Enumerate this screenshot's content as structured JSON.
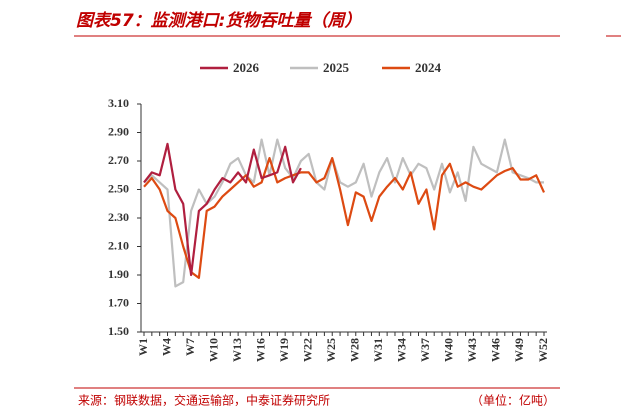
{
  "chart_data": {
    "type": "line",
    "title": "图表57：监测港口:货物吞吐量（周）",
    "source": "来源：钢联数据，交通运输部，中泰证券研究所",
    "unit": "（单位：亿吨）",
    "categories": [
      "W1",
      null,
      null,
      "W4",
      null,
      null,
      "W7",
      null,
      null,
      "W10",
      null,
      null,
      "W13",
      null,
      null,
      "W16",
      null,
      null,
      "W19",
      null,
      null,
      "W22",
      null,
      null,
      "W25",
      null,
      null,
      "W28",
      null,
      null,
      "W31",
      null,
      null,
      "W34",
      null,
      null,
      "W37",
      null,
      null,
      "W40",
      null,
      null,
      "W43",
      null,
      null,
      "W46",
      null,
      null,
      "W49",
      null,
      null,
      "W52"
    ],
    "series": [
      {
        "name": "2026",
        "color": "#b01f3f",
        "values": [
          2.55,
          2.62,
          2.6,
          2.82,
          2.5,
          2.4,
          1.9,
          2.35,
          2.4,
          2.5,
          2.58,
          2.55,
          2.62,
          2.55,
          2.78,
          2.58,
          2.6,
          2.62,
          2.8,
          2.55,
          2.65,
          null,
          null,
          null,
          null,
          null,
          null,
          null,
          null,
          null,
          null,
          null,
          null,
          null,
          null,
          null,
          null,
          null,
          null,
          null,
          null,
          null,
          null,
          null,
          null,
          null,
          null,
          null,
          null,
          null,
          null,
          null
        ]
      },
      {
        "name": "2025",
        "color": "#bfbfbf",
        "values": [
          2.55,
          2.6,
          2.55,
          2.5,
          1.82,
          1.85,
          2.35,
          2.5,
          2.4,
          2.45,
          2.55,
          2.68,
          2.72,
          2.6,
          2.55,
          2.85,
          2.6,
          2.85,
          2.65,
          2.58,
          2.7,
          2.75,
          2.55,
          2.5,
          2.72,
          2.55,
          2.52,
          2.55,
          2.68,
          2.45,
          2.62,
          2.72,
          2.55,
          2.72,
          2.6,
          2.68,
          2.65,
          2.5,
          2.68,
          2.48,
          2.62,
          2.42,
          2.8,
          2.68,
          2.65,
          2.62,
          2.85,
          2.62,
          2.6,
          2.58,
          2.55,
          2.55
        ]
      },
      {
        "name": "2024",
        "color": "#dd4a12",
        "values": [
          2.52,
          2.58,
          2.5,
          2.35,
          2.3,
          2.1,
          1.92,
          1.88,
          2.35,
          2.38,
          2.45,
          2.5,
          2.55,
          2.6,
          2.52,
          2.55,
          2.72,
          2.55,
          2.58,
          2.6,
          2.62,
          2.62,
          2.55,
          2.58,
          2.72,
          2.5,
          2.25,
          2.48,
          2.45,
          2.28,
          2.45,
          2.52,
          2.58,
          2.5,
          2.62,
          2.4,
          2.5,
          2.22,
          2.6,
          2.68,
          2.52,
          2.55,
          2.52,
          2.5,
          2.55,
          2.6,
          2.63,
          2.65,
          2.57,
          2.57,
          2.6,
          2.48
        ]
      }
    ],
    "ylim": [
      1.5,
      3.1
    ],
    "yticks": [
      {
        "value": 1.5,
        "label": "1.50"
      },
      {
        "value": 1.7,
        "label": "1.70"
      },
      {
        "value": 1.9,
        "label": "1.90"
      },
      {
        "value": 2.1,
        "label": "2.10"
      },
      {
        "value": 2.3,
        "label": "2.30"
      },
      {
        "value": 2.5,
        "label": "2.50"
      },
      {
        "value": 2.7,
        "label": "2.70"
      },
      {
        "value": 2.9,
        "label": "2.90"
      },
      {
        "value": 3.1,
        "label": "3.10"
      }
    ],
    "grid": false
  }
}
